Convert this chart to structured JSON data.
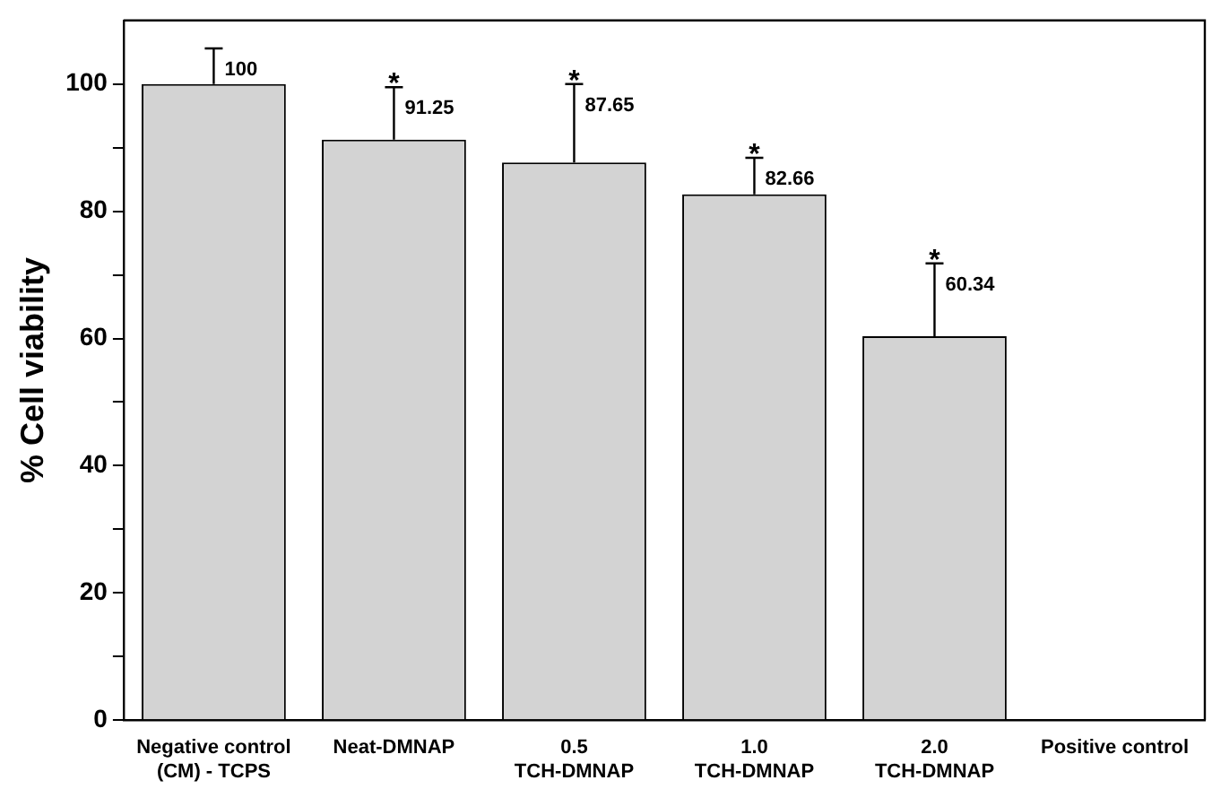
{
  "chart_data": {
    "type": "bar",
    "ylabel": "% Cell viability",
    "categories": [
      "Negative control\n(CM) - TCPS",
      "Neat-DMNAP",
      "0.5\nTCH-DMNAP",
      "1.0\nTCH-DMNAP",
      "2.0\nTCH-DMNAP",
      "Positive control"
    ],
    "values": [
      100,
      91.25,
      87.65,
      82.66,
      60.34,
      0
    ],
    "errors": [
      [
        100,
        105.6
      ],
      [
        91.25,
        99.5
      ],
      [
        87.65,
        100
      ],
      [
        82.66,
        88.4
      ],
      [
        60.34,
        71.8
      ],
      null
    ],
    "value_labels": [
      "100",
      "91.25",
      "87.65",
      "82.66",
      "60.34",
      null
    ],
    "color": "#d3d3d3",
    "ylim": [
      0,
      110
    ],
    "yticks": [
      0,
      {
        "value": 10,
        "label": null
      },
      20,
      {
        "value": 30,
        "label": null
      },
      40,
      {
        "value": 50,
        "label": null
      },
      60,
      {
        "value": 70,
        "label": null
      },
      80,
      {
        "value": 90,
        "label": null
      },
      100
    ],
    "annotations": [
      {
        "text": "*",
        "x": "Neat-DMNAP",
        "y": 99.5
      },
      {
        "text": "*",
        "x": "0.5\nTCH-DMNAP",
        "y": 100
      },
      {
        "text": "*",
        "x": "1.0\nTCH-DMNAP",
        "y": 88.4
      },
      {
        "text": "*",
        "x": "2.0\nTCH-DMNAP",
        "y": 71.8
      }
    ],
    "grid": false,
    "legend": false
  }
}
